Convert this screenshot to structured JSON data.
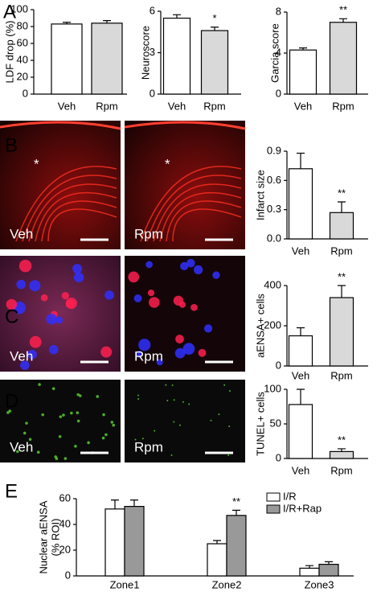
{
  "panel_labels": [
    "A",
    "B",
    "C",
    "D",
    "E"
  ],
  "images": [
    {
      "labels": [
        "Veh",
        "Rpm"
      ],
      "marker": "*"
    },
    {
      "labels": [
        "Veh",
        "Rpm"
      ]
    },
    {
      "labels": [
        "Veh",
        "Rpm"
      ]
    }
  ],
  "chart_data": [
    {
      "type": "bar",
      "ylabel": "LDF drop (%)",
      "categories": [
        "Veh",
        "Rpm"
      ],
      "series": [
        {
          "colors": [
            "#ffffff",
            "#d9d9d9"
          ],
          "values": [
            83,
            84
          ],
          "errors": [
            2,
            3
          ]
        }
      ],
      "ylim": [
        0,
        100
      ],
      "yticks": [
        0,
        20,
        40,
        60,
        80,
        100
      ],
      "annotations": []
    },
    {
      "type": "bar",
      "ylabel": "Neuroscore",
      "categories": [
        "Veh",
        "Rpm"
      ],
      "series": [
        {
          "colors": [
            "#ffffff",
            "#d9d9d9"
          ],
          "values": [
            5.5,
            4.6
          ],
          "errors": [
            0.25,
            0.25
          ]
        }
      ],
      "ylim": [
        0,
        6
      ],
      "yticks": [
        0,
        3,
        6
      ],
      "annotations": [
        {
          "text": "*",
          "at": "Rpm"
        }
      ]
    },
    {
      "type": "bar",
      "ylabel": "Garcia score",
      "categories": [
        "Veh",
        "Rpm"
      ],
      "series": [
        {
          "colors": [
            "#ffffff",
            "#d9d9d9"
          ],
          "values": [
            4.3,
            7.0
          ],
          "errors": [
            0.2,
            0.35
          ]
        }
      ],
      "ylim": [
        0,
        8
      ],
      "yticks": [
        0,
        4,
        8
      ],
      "annotations": [
        {
          "text": "**",
          "at": "Rpm"
        }
      ]
    },
    {
      "type": "bar",
      "ylabel": "Infarct size",
      "categories": [
        "Veh",
        "Rpm"
      ],
      "series": [
        {
          "colors": [
            "#ffffff",
            "#d9d9d9"
          ],
          "values": [
            0.72,
            0.27
          ],
          "errors": [
            0.16,
            0.11
          ]
        }
      ],
      "ylim": [
        0,
        0.9
      ],
      "yticks": [
        {
          "value": 0,
          "label": "0.0"
        },
        0.3,
        0.6,
        0.9
      ],
      "annotations": [
        {
          "text": "**",
          "at": "Rpm"
        }
      ]
    },
    {
      "type": "bar",
      "ylabel": "aENSA+ cells",
      "categories": [
        "Veh",
        "Rpm"
      ],
      "series": [
        {
          "colors": [
            "#ffffff",
            "#d9d9d9"
          ],
          "values": [
            150,
            340
          ],
          "errors": [
            40,
            60
          ]
        }
      ],
      "ylim": [
        0,
        400
      ],
      "yticks": [
        0,
        200,
        400
      ],
      "annotations": [
        {
          "text": "**",
          "at": "Rpm"
        }
      ]
    },
    {
      "type": "bar",
      "ylabel": "TUNEL+ cells",
      "categories": [
        "Veh",
        "Rpm"
      ],
      "series": [
        {
          "colors": [
            "#ffffff",
            "#d9d9d9"
          ],
          "values": [
            78,
            10
          ],
          "errors": [
            22,
            4
          ]
        }
      ],
      "ylim": [
        0,
        100
      ],
      "yticks": [
        0,
        50,
        100
      ],
      "annotations": [
        {
          "text": "**",
          "at": "Rpm"
        }
      ]
    },
    {
      "type": "grouped-bar",
      "ylabel": [
        "Nuclear aENSA",
        "(% ROI)"
      ],
      "categories": [
        "Zone1",
        "Zone2",
        "Zone3"
      ],
      "series": [
        {
          "name": "I/R",
          "color": "#ffffff",
          "values": [
            52,
            25,
            6
          ],
          "errors": [
            7,
            2.5,
            2
          ]
        },
        {
          "name": "I/R+Rap",
          "color": "#999999",
          "values": [
            54,
            47,
            9
          ],
          "errors": [
            5,
            4,
            2
          ]
        }
      ],
      "ylim": [
        0,
        60
      ],
      "yticks": [
        0,
        20,
        40,
        60
      ],
      "annotations": [
        {
          "text": "**",
          "at": "Zone2",
          "series": "I/R+Rap"
        }
      ]
    }
  ]
}
